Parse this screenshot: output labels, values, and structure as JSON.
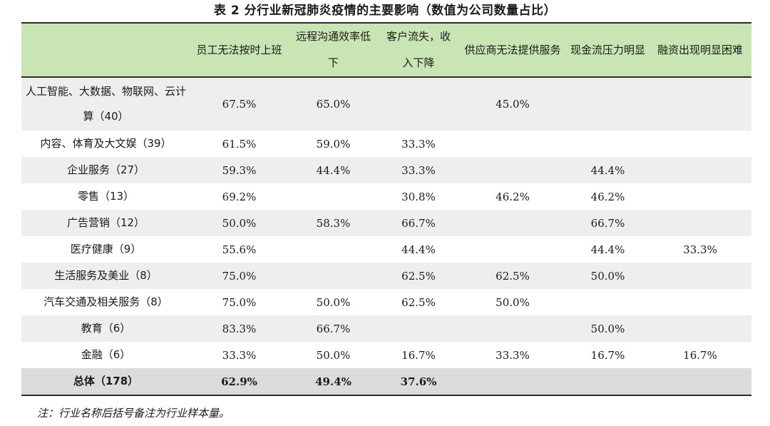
{
  "title": "表 2 分行业新冠肺炎疫情的主要影响（数值为公司数量占比）",
  "headers": [
    "",
    "员工无法按时上班",
    "远程沟通效率低下",
    "客户流失，收入下降",
    "供应商无法提供服务",
    "现金流压力明显",
    "融资出现明显困难"
  ],
  "rows": [
    {
      "industry": "人工智能、大数据、物联网、云计算（40）",
      "values": [
        "67.5%",
        "65.0%",
        "",
        "45.0%",
        "",
        ""
      ]
    },
    {
      "industry": "内容、体育及大文娱（39）",
      "values": [
        "61.5%",
        "59.0%",
        "33.3%",
        "",
        "",
        ""
      ]
    },
    {
      "industry": "企业服务（27）",
      "values": [
        "59.3%",
        "44.4%",
        "33.3%",
        "",
        "44.4%",
        ""
      ]
    },
    {
      "industry": "零售（13）",
      "values": [
        "69.2%",
        "",
        "30.8%",
        "46.2%",
        "46.2%",
        ""
      ]
    },
    {
      "industry": "广告营销（12）",
      "values": [
        "50.0%",
        "58.3%",
        "66.7%",
        "",
        "66.7%",
        ""
      ]
    },
    {
      "industry": "医疗健康（9）",
      "values": [
        "55.6%",
        "",
        "44.4%",
        "",
        "44.4%",
        "33.3%"
      ]
    },
    {
      "industry": "生活服务及美业（8）",
      "values": [
        "75.0%",
        "",
        "62.5%",
        "62.5%",
        "50.0%",
        ""
      ]
    },
    {
      "industry": "汽车交通及相关服务（8）",
      "values": [
        "75.0%",
        "50.0%",
        "62.5%",
        "50.0%",
        "",
        ""
      ]
    },
    {
      "industry": "教育（6）",
      "values": [
        "83.3%",
        "66.7%",
        "",
        "",
        "50.0%",
        ""
      ]
    },
    {
      "industry": "金融（6）",
      "values": [
        "33.3%",
        "50.0%",
        "16.7%",
        "33.3%",
        "16.7%",
        "16.7%"
      ]
    }
  ],
  "total": {
    "industry": "总体（178）",
    "values": [
      "62.9%",
      "49.4%",
      "37.6%",
      "",
      "",
      ""
    ]
  },
  "note": "注：行业名称后括号备注为行业样本量。",
  "colors": {
    "header_bg": "#c9e5b3",
    "stripe_bg": "#eeeeee",
    "total_bg": "#dcdcdc"
  }
}
